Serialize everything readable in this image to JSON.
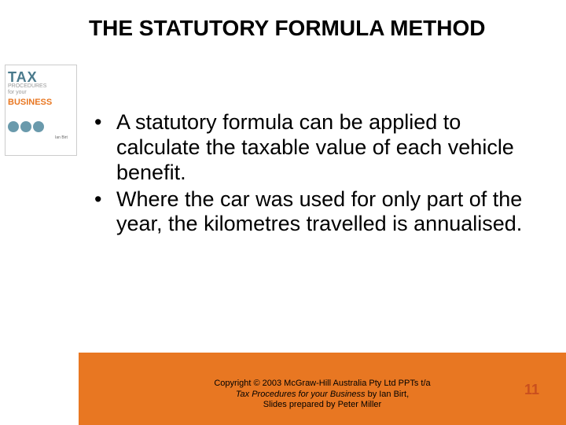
{
  "slide": {
    "title": "THE STATUTORY FORMULA METHOD",
    "bullets": [
      "A statutory formula can be applied to calculate the taxable value of each vehicle benefit.",
      "Where the car was used for only part of the year, the kilometres travelled is annualised."
    ],
    "number": "11"
  },
  "book": {
    "tax": "TAX",
    "sub": "PROCEDURES\nfor your",
    "business": "BUSINESS",
    "author": "Ian Birt"
  },
  "copyright": {
    "line1": "Copyright © 2003 McGraw-Hill Australia Pty Ltd PPTs t/a",
    "line2_italic": "Tax Procedures for your Business",
    "line2_rest": " by Ian Birt,",
    "line3": "Slides prepared by Peter Miller"
  },
  "colors": {
    "orange": "#e87722",
    "title": "#000000",
    "slide_num": "#c94f1e",
    "book_teal": "#4a7a8c"
  }
}
